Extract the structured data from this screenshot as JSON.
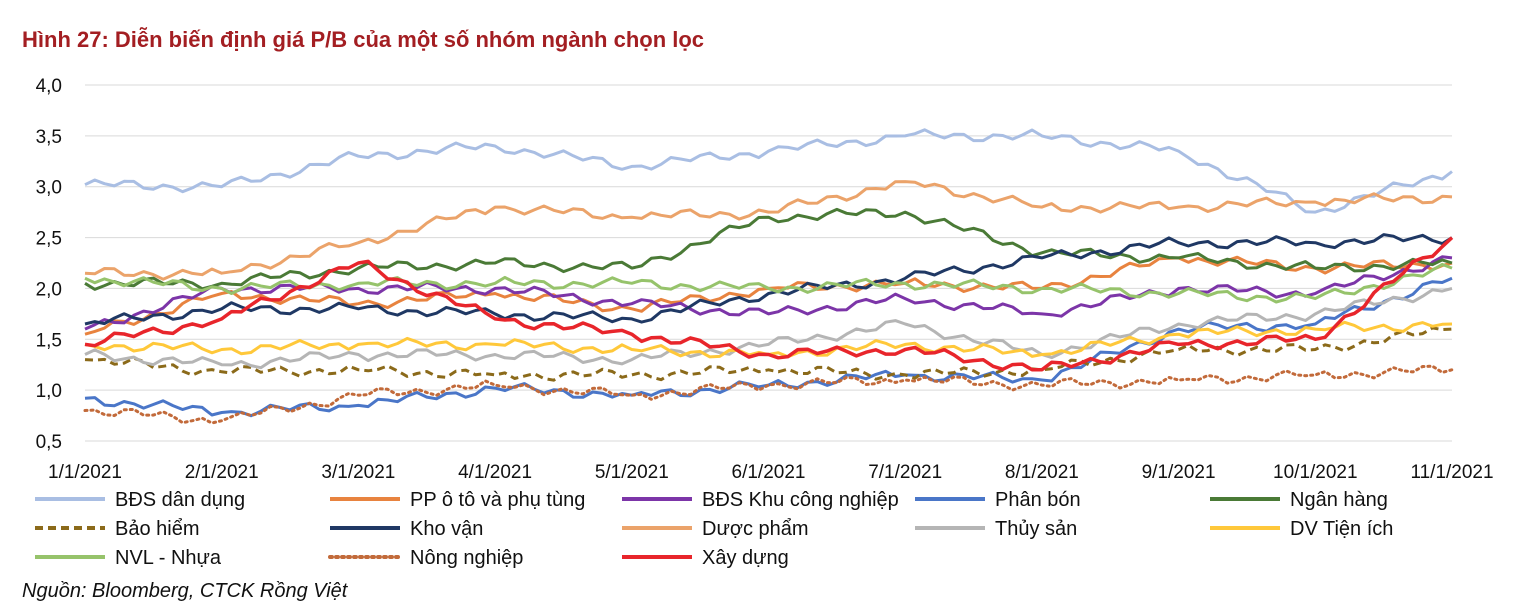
{
  "title": "Hình 27: Diễn biến định giá P/B của một số nhóm ngành chọn lọc",
  "source": "Nguồn: Bloomberg, CTCK Rồng Việt",
  "chart_data": {
    "type": "line",
    "x": [
      "1/1/2021",
      "2/1/2021",
      "3/1/2021",
      "4/1/2021",
      "5/1/2021",
      "6/1/2021",
      "7/1/2021",
      "8/1/2021",
      "9/1/2021",
      "10/1/2021",
      "11/1/2021"
    ],
    "x_tick_labels": [
      "1/1/2021",
      "2/1/2021",
      "3/1/2021",
      "4/1/2021",
      "5/1/2021",
      "6/1/2021",
      "7/1/2021",
      "8/1/2021",
      "9/1/2021",
      "10/1/2021",
      "11/1/2021"
    ],
    "y_tick_labels": [
      "0,5",
      "1,0",
      "1,5",
      "2,0",
      "2,5",
      "3,0",
      "3,5",
      "4,0"
    ],
    "ylim": [
      0.5,
      4.0
    ],
    "grid": true,
    "legend_position": "bottom",
    "series": [
      {
        "name": "BĐS dân dụng",
        "color": "#a9bee3",
        "dash": "solid",
        "values": [
          3.02,
          3.0,
          3.3,
          3.4,
          3.2,
          3.35,
          3.5,
          3.5,
          3.35,
          2.75,
          3.15
        ]
      },
      {
        "name": "PP ô tô và phụ tùng",
        "color": "#e8833f",
        "dash": "solid",
        "values": [
          1.55,
          1.95,
          1.85,
          1.95,
          1.8,
          2.0,
          2.05,
          2.0,
          2.3,
          2.2,
          2.25
        ]
      },
      {
        "name": "BĐS Khu công nghiệp",
        "color": "#7c35a8",
        "dash": "solid",
        "values": [
          1.6,
          2.0,
          2.0,
          2.0,
          1.85,
          1.75,
          1.9,
          1.75,
          2.0,
          1.95,
          2.3
        ]
      },
      {
        "name": "Phân bón",
        "color": "#4a76c8",
        "dash": "solid",
        "values": [
          0.92,
          0.78,
          0.85,
          1.02,
          0.95,
          1.05,
          1.15,
          1.1,
          1.6,
          1.65,
          2.1
        ]
      },
      {
        "name": "Ngân hàng",
        "color": "#4a7a36",
        "dash": "solid",
        "values": [
          2.05,
          2.05,
          2.2,
          2.25,
          2.2,
          2.7,
          2.75,
          2.35,
          2.3,
          2.2,
          2.25
        ]
      },
      {
        "name": "Bảo hiểm",
        "color": "#8b6a1a",
        "dash": "dashed",
        "values": [
          1.3,
          1.18,
          1.2,
          1.15,
          1.15,
          1.2,
          1.15,
          1.2,
          1.4,
          1.4,
          1.6
        ]
      },
      {
        "name": "Kho vận",
        "color": "#1f3864",
        "dash": "solid",
        "values": [
          1.65,
          1.8,
          1.8,
          1.75,
          1.7,
          1.95,
          2.1,
          2.3,
          2.45,
          2.45,
          2.5
        ]
      },
      {
        "name": "Dược phẩm",
        "color": "#eba36a",
        "dash": "solid",
        "values": [
          2.15,
          2.15,
          2.45,
          2.8,
          2.7,
          2.75,
          3.05,
          2.8,
          2.8,
          2.85,
          2.9
        ]
      },
      {
        "name": "Thủy sản",
        "color": "#b5b5b5",
        "dash": "solid",
        "values": [
          1.35,
          1.25,
          1.35,
          1.35,
          1.3,
          1.45,
          1.65,
          1.35,
          1.65,
          1.75,
          2.0
        ]
      },
      {
        "name": "DV Tiện ích",
        "color": "#ffc83a",
        "dash": "solid",
        "values": [
          1.45,
          1.4,
          1.45,
          1.45,
          1.4,
          1.35,
          1.45,
          1.35,
          1.55,
          1.6,
          1.65
        ]
      },
      {
        "name": "NVL - Nhựa",
        "color": "#96c36b",
        "dash": "solid",
        "values": [
          2.1,
          2.0,
          2.05,
          2.05,
          2.05,
          2.0,
          2.05,
          2.0,
          1.95,
          1.9,
          2.2
        ]
      },
      {
        "name": "Nông nghiệp",
        "color": "#c26a3a",
        "dash": "dotted",
        "values": [
          0.8,
          0.7,
          0.95,
          1.05,
          0.95,
          1.05,
          1.1,
          1.05,
          1.1,
          1.15,
          1.2
        ]
      },
      {
        "name": "Xây dựng",
        "color": "#e8252b",
        "dash": "solid",
        "values": [
          1.45,
          1.7,
          2.25,
          1.7,
          1.55,
          1.35,
          1.4,
          1.2,
          1.45,
          1.5,
          2.5
        ]
      }
    ]
  }
}
